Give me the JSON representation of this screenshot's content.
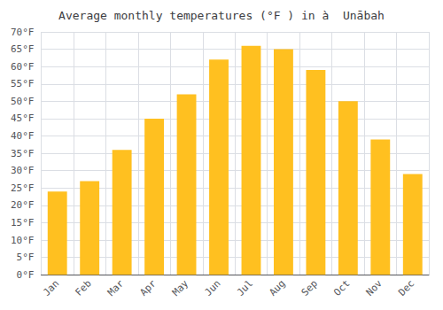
{
  "chart_data": {
    "type": "bar",
    "title": "Average monthly temperatures (°F ) in à  Unābah",
    "categories": [
      "Jan",
      "Feb",
      "Mar",
      "Apr",
      "May",
      "Jun",
      "Jul",
      "Aug",
      "Sep",
      "Oct",
      "Nov",
      "Dec"
    ],
    "values": [
      24,
      27,
      36,
      45,
      52,
      62,
      66,
      65,
      59,
      50,
      39,
      29
    ],
    "color": "#FFC020",
    "ylim": [
      0,
      70
    ],
    "yticks": [
      {
        "value": 0,
        "label": "0°F"
      },
      {
        "value": 5,
        "label": "5°F"
      },
      {
        "value": 10,
        "label": "10°F"
      },
      {
        "value": 15,
        "label": "15°F"
      },
      {
        "value": 20,
        "label": "20°F"
      },
      {
        "value": 25,
        "label": "25°F"
      },
      {
        "value": 30,
        "label": "30°F"
      },
      {
        "value": 35,
        "label": "35°F"
      },
      {
        "value": 40,
        "label": "40°F"
      },
      {
        "value": 45,
        "label": "45°F"
      },
      {
        "value": 50,
        "label": "50°F"
      },
      {
        "value": 55,
        "label": "55°F"
      },
      {
        "value": 60,
        "label": "60°F"
      },
      {
        "value": 65,
        "label": "65°F"
      },
      {
        "value": 70,
        "label": "70°F"
      }
    ],
    "grid": true
  }
}
